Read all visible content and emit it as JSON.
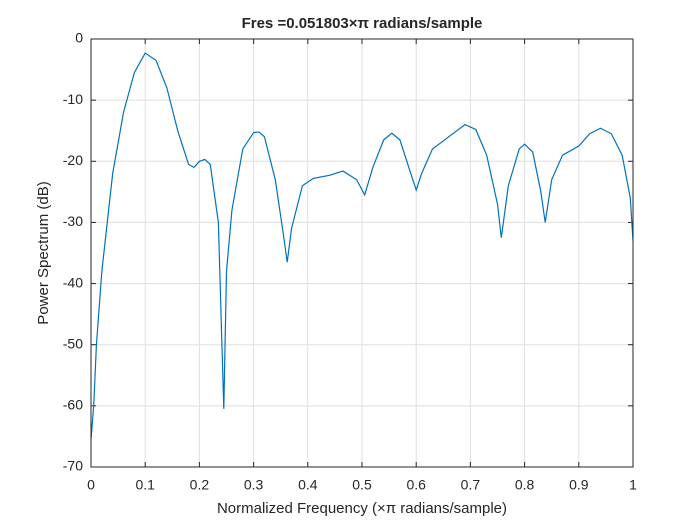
{
  "chart_data": {
    "type": "line",
    "title": "Fres =0.051803×π radians/sample",
    "xlabel": "Normalized Frequency (×π radians/sample)",
    "ylabel": "Power Spectrum (dB)",
    "x": [
      0,
      0.005,
      0.01,
      0.02,
      0.04,
      0.06,
      0.08,
      0.1,
      0.12,
      0.14,
      0.16,
      0.18,
      0.19,
      0.2,
      0.21,
      0.22,
      0.235,
      0.245,
      0.25,
      0.26,
      0.28,
      0.3,
      0.31,
      0.32,
      0.34,
      0.355,
      0.362,
      0.37,
      0.39,
      0.41,
      0.44,
      0.465,
      0.49,
      0.505,
      0.52,
      0.54,
      0.555,
      0.57,
      0.59,
      0.6,
      0.61,
      0.63,
      0.66,
      0.69,
      0.71,
      0.73,
      0.75,
      0.757,
      0.77,
      0.79,
      0.8,
      0.815,
      0.83,
      0.838,
      0.85,
      0.87,
      0.9,
      0.92,
      0.94,
      0.96,
      0.98,
      0.995,
      1
    ],
    "values": [
      -65.5,
      -60,
      -50,
      -38,
      -22,
      -12,
      -5.5,
      -2.3,
      -3.5,
      -8,
      -15,
      -20.5,
      -21,
      -20,
      -19.7,
      -20.5,
      -30,
      -60.5,
      -38,
      -28,
      -18,
      -15.3,
      -15.2,
      -16,
      -23,
      -32,
      -36.5,
      -31,
      -24,
      -22.8,
      -22.3,
      -21.6,
      -23,
      -25.5,
      -21,
      -16.5,
      -15.4,
      -16.5,
      -22,
      -24.7,
      -22,
      -18,
      -16,
      -14,
      -14.8,
      -19,
      -27,
      -32.5,
      -24,
      -18,
      -17.2,
      -18.5,
      -25,
      -30,
      -23,
      -19,
      -17.5,
      -15.5,
      -14.6,
      -15.5,
      -19,
      -26,
      -33
    ],
    "color": "#0072bd",
    "xlim": [
      0,
      1
    ],
    "xticks": [
      0,
      0.1,
      0.2,
      0.3,
      0.4,
      0.5,
      0.6,
      0.7,
      0.8,
      0.9,
      1
    ],
    "ylim": [
      -70,
      0
    ],
    "yticks": [
      -70,
      -60,
      -50,
      -40,
      -30,
      -20,
      -10,
      0
    ],
    "grid": true
  }
}
